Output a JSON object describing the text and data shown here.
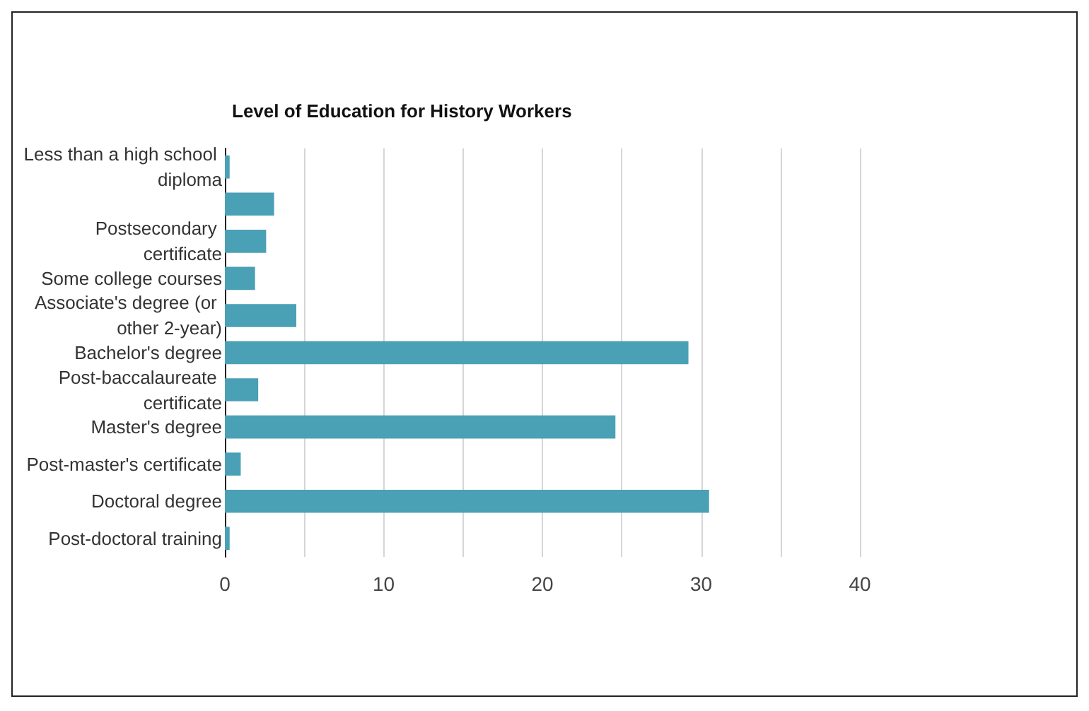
{
  "chart_data": {
    "type": "bar",
    "orientation": "horizontal",
    "title": "Level of Education for History Workers",
    "categories": [
      "Less than a high school diploma",
      null,
      "Postsecondary certificate",
      "Some college courses",
      "Associate's degree (or other 2-year)",
      "Bachelor's degree",
      "Post-baccalaureate certificate",
      "Master's degree",
      "Post-master's certificate",
      "Doctoral degree",
      "Post-doctoral training"
    ],
    "values": [
      0.3,
      3.1,
      2.6,
      1.9,
      4.5,
      29.2,
      2.1,
      24.6,
      1,
      30.5,
      0.3
    ],
    "color": "#4aa0b5",
    "xlim": [
      0,
      40
    ],
    "xticks": [
      0,
      {
        "value": 5,
        "label": null
      },
      10,
      {
        "value": 15,
        "label": null
      },
      20,
      {
        "value": 25,
        "label": null
      },
      30,
      {
        "value": 35,
        "label": null
      },
      40
    ],
    "grid": "x"
  }
}
